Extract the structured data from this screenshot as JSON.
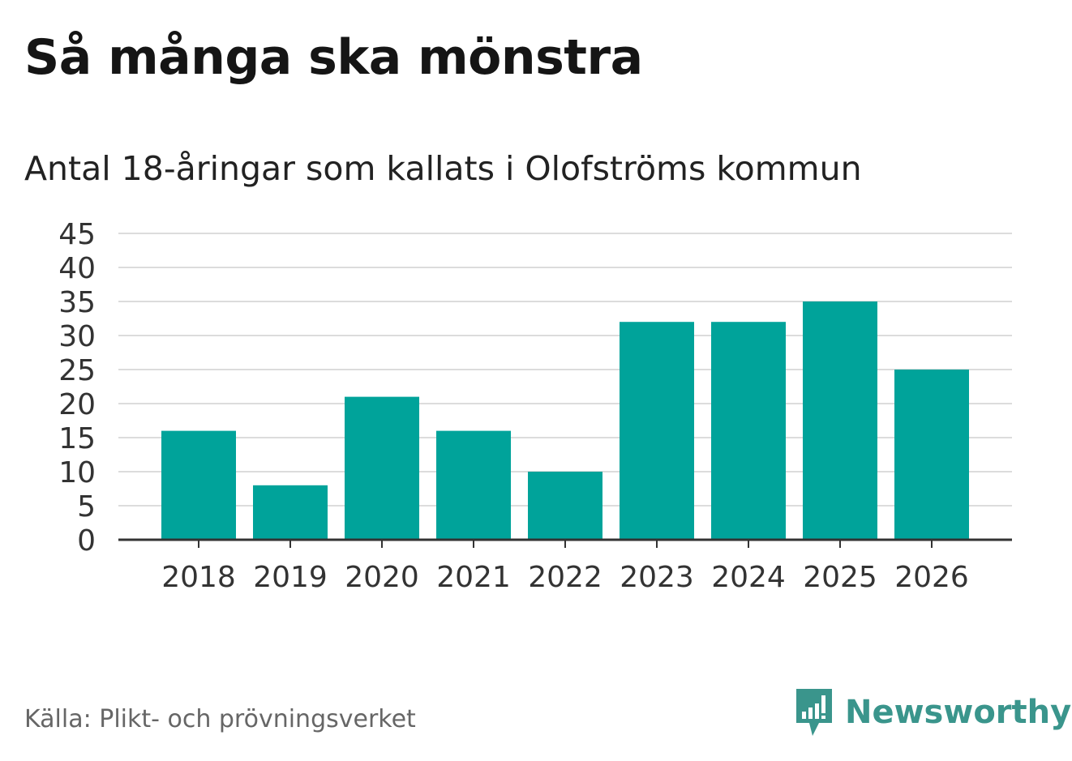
{
  "header": {
    "title": "Så många ska mönstra",
    "subtitle": "Antal 18-åringar som kallats i Olofströms kommun"
  },
  "footer": {
    "source": "Källa: Plikt- och prövningsverket",
    "brand_name": "Newsworthy",
    "brand_icon": "newsworthy-logo-icon",
    "brand_color": "#3a958c"
  },
  "chart_data": {
    "type": "bar",
    "categories": [
      "2018",
      "2019",
      "2020",
      "2021",
      "2022",
      "2023",
      "2024",
      "2025",
      "2026"
    ],
    "values": [
      16,
      8,
      21,
      16,
      10,
      32,
      32,
      35,
      25
    ],
    "ylim": [
      0,
      45
    ],
    "yticks": [
      0,
      5,
      10,
      15,
      20,
      25,
      30,
      35,
      40,
      45
    ],
    "grid": true,
    "legend": "none",
    "bar_color": "#00a39a",
    "grid_color": "#dcdcdc",
    "axis_color": "#333333"
  }
}
